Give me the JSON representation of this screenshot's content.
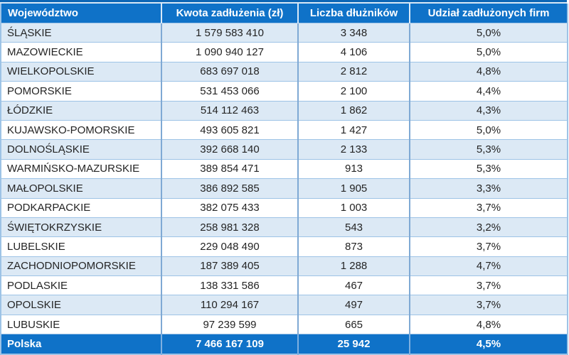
{
  "chart_data": {
    "type": "table",
    "columns": [
      "Województwo",
      "Kwota zadłużenia (zł)",
      "Liczba dłużników",
      "Udział zadłużonych firm"
    ],
    "rows": [
      [
        "ŚLĄSKIE",
        "1 579 583 410",
        "3 348",
        "5,0%"
      ],
      [
        "MAZOWIECKIE",
        "1 090 940 127",
        "4 106",
        "5,0%"
      ],
      [
        "WIELKOPOLSKIE",
        "683 697 018",
        "2 812",
        "4,8%"
      ],
      [
        "POMORSKIE",
        "531 453 066",
        "2 100",
        "4,4%"
      ],
      [
        "ŁÓDZKIE",
        "514 112 463",
        "1 862",
        "4,3%"
      ],
      [
        "KUJAWSKO-POMORSKIE",
        "493 605 821",
        "1 427",
        "5,0%"
      ],
      [
        "DOLNOŚLĄSKIE",
        "392 668 140",
        "2 133",
        "5,3%"
      ],
      [
        "WARMIŃSKO-MAZURSKIE",
        "389 854 471",
        "913",
        "5,3%"
      ],
      [
        "MAŁOPOLSKIE",
        "386 892 585",
        "1 905",
        "3,3%"
      ],
      [
        "PODKARPACKIE",
        "382 075 433",
        "1 003",
        "3,7%"
      ],
      [
        "ŚWIĘTOKRZYSKIE",
        "258 981 328",
        "543",
        "3,2%"
      ],
      [
        "LUBELSKIE",
        "229 048 490",
        "873",
        "3,7%"
      ],
      [
        "ZACHODNIOPOMORSKIE",
        "187 389 405",
        "1 288",
        "4,7%"
      ],
      [
        "PODLASKIE",
        "138 331 586",
        "467",
        "3,7%"
      ],
      [
        "OPOLSKIE",
        "110 294 167",
        "497",
        "3,7%"
      ],
      [
        "LUBUSKIE",
        "97 239 599",
        "665",
        "4,8%"
      ]
    ],
    "total_row": [
      "Polska",
      "7 466 167 109",
      "25 942",
      "4,5%"
    ],
    "layout": {
      "banded_rows": true,
      "band_parity": "odd"
    }
  },
  "colors": {
    "header_bg": "#0f72c8",
    "total_bg": "#0f72c8",
    "band_bg": "#dce9f5",
    "outer_border": "#9dc3e6",
    "row_separator": "#9dc3e6",
    "column_divider": "#7fa9d4",
    "top_strip": "#0d66b5",
    "header_text": "#ffffff",
    "body_text": "#242424"
  }
}
